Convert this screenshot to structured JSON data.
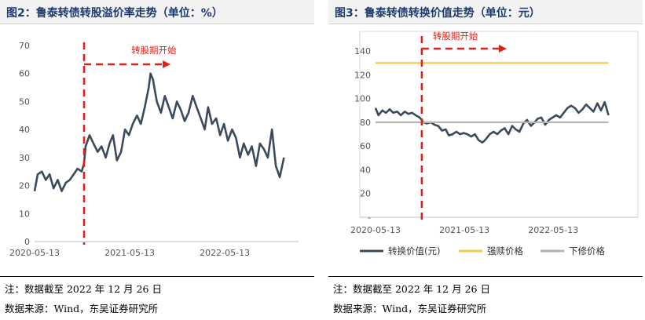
{
  "charts": {
    "left": {
      "title": "图2：鲁泰转债转股溢价率走势（单位：%）",
      "note": "注：数据截至 2022 年 12 月 26 日",
      "source": "数据来源：Wind，东吴证券研究所"
    },
    "right": {
      "title": "图3：鲁泰转债转换价值走势（单位：元）",
      "note": "注：数据截至 2022 年 12 月 26 日",
      "source": "数据来源：Wind，东吴证券研究所"
    }
  },
  "chart_data": [
    {
      "type": "line",
      "title": "图2：鲁泰转债转股溢价率走势（单位：%）",
      "xlabel": "",
      "ylabel": "",
      "x_ticks": [
        "2020-05-13",
        "2021-05-13",
        "2022-05-13"
      ],
      "x_range": [
        "2020-05-13",
        "2023-02-20"
      ],
      "ylim": [
        0,
        70
      ],
      "y_ticks": [
        0,
        10,
        20,
        30,
        40,
        50,
        60,
        70
      ],
      "grid": false,
      "series": [
        {
          "color": "#3b4a5c",
          "x": [
            "2020-05-13",
            "2020-05-25",
            "2020-06-10",
            "2020-06-25",
            "2020-07-10",
            "2020-07-25",
            "2020-08-10",
            "2020-08-25",
            "2020-09-10",
            "2020-09-25",
            "2020-10-10",
            "2020-10-25",
            "2020-11-10",
            "2020-11-19",
            "2020-11-25",
            "2020-12-10",
            "2020-12-25",
            "2021-01-10",
            "2021-01-25",
            "2021-02-10",
            "2021-02-25",
            "2021-03-10",
            "2021-03-25",
            "2021-04-10",
            "2021-04-25",
            "2021-05-10",
            "2021-05-25",
            "2021-06-10",
            "2021-06-25",
            "2021-07-10",
            "2021-07-25",
            "2021-08-01",
            "2021-08-10",
            "2021-08-25",
            "2021-09-10",
            "2021-09-25",
            "2021-10-10",
            "2021-10-25",
            "2021-11-10",
            "2021-11-25",
            "2021-12-10",
            "2021-12-25",
            "2022-01-10",
            "2022-01-25",
            "2022-02-10",
            "2022-02-25",
            "2022-03-10",
            "2022-03-25",
            "2022-04-10",
            "2022-04-25",
            "2022-05-10",
            "2022-05-25",
            "2022-06-10",
            "2022-06-25",
            "2022-07-10",
            "2022-07-25",
            "2022-08-10",
            "2022-08-25",
            "2022-09-10",
            "2022-09-25",
            "2022-10-10",
            "2022-10-25",
            "2022-11-10",
            "2022-11-25",
            "2022-12-10",
            "2022-12-26"
          ],
          "y": [
            18,
            24,
            25,
            22,
            24,
            19,
            22,
            18,
            21,
            22,
            24,
            26,
            25,
            28,
            34,
            38,
            35,
            32,
            34,
            30,
            35,
            38,
            29,
            32,
            40,
            38,
            42,
            45,
            42,
            48,
            55,
            60,
            58,
            50,
            46,
            52,
            48,
            44,
            50,
            47,
            43,
            46,
            52,
            48,
            44,
            40,
            48,
            42,
            44,
            38,
            42,
            36,
            40,
            37,
            30,
            35,
            31,
            34,
            27,
            35,
            33,
            30,
            40,
            27,
            23,
            30
          ]
        }
      ],
      "annotations": [
        {
          "text": "转股期开始",
          "x": "2020-11-19"
        }
      ]
    },
    {
      "type": "line",
      "title": "图3：鲁泰转债转换价值走势（单位：元）",
      "xlabel": "",
      "ylabel": "",
      "x_ticks": [
        "2020-05-13",
        "2021-05-13",
        "2022-05-13"
      ],
      "x_range": [
        "2020-05-13",
        "2023-02-20"
      ],
      "ylim": [
        0,
        150
      ],
      "y_ticks": [
        "-",
        20,
        40,
        60,
        80,
        100,
        120,
        140
      ],
      "grid": false,
      "legend_position": "bottom",
      "series": [
        {
          "name": "转换价值(元)",
          "color": "#3b4a5c",
          "x": [
            "2020-05-13",
            "2020-05-25",
            "2020-06-10",
            "2020-06-25",
            "2020-07-10",
            "2020-07-25",
            "2020-08-10",
            "2020-08-25",
            "2020-09-10",
            "2020-09-25",
            "2020-10-10",
            "2020-10-25",
            "2020-11-10",
            "2020-11-19",
            "2020-11-25",
            "2020-12-10",
            "2020-12-25",
            "2021-01-10",
            "2021-01-25",
            "2021-02-10",
            "2021-02-25",
            "2021-03-10",
            "2021-03-25",
            "2021-04-10",
            "2021-04-25",
            "2021-05-10",
            "2021-05-25",
            "2021-06-10",
            "2021-06-25",
            "2021-07-10",
            "2021-07-25",
            "2021-08-01",
            "2021-08-10",
            "2021-08-25",
            "2021-09-10",
            "2021-09-25",
            "2021-10-10",
            "2021-10-25",
            "2021-11-10",
            "2021-11-25",
            "2021-12-10",
            "2021-12-25",
            "2022-01-10",
            "2022-01-25",
            "2022-02-10",
            "2022-02-25",
            "2022-03-10",
            "2022-03-25",
            "2022-04-10",
            "2022-04-25",
            "2022-05-10",
            "2022-05-25",
            "2022-06-10",
            "2022-06-25",
            "2022-07-10",
            "2022-07-25",
            "2022-08-10",
            "2022-08-25",
            "2022-09-10",
            "2022-09-25",
            "2022-10-10",
            "2022-10-25",
            "2022-11-10",
            "2022-11-25",
            "2022-12-10",
            "2022-12-26"
          ],
          "y": [
            92,
            86,
            90,
            88,
            91,
            88,
            89,
            86,
            89,
            87,
            88,
            86,
            84,
            82,
            80,
            79,
            80,
            78,
            77,
            73,
            74,
            69,
            70,
            72,
            70,
            71,
            70,
            68,
            70,
            65,
            63,
            64,
            66,
            70,
            72,
            70,
            73,
            75,
            70,
            77,
            74,
            72,
            79,
            82,
            77,
            80,
            83,
            84,
            78,
            82,
            84,
            86,
            84,
            88,
            92,
            94,
            92,
            88,
            91,
            95,
            92,
            89,
            96,
            90,
            97,
            86
          ]
        },
        {
          "name": "强赎价格",
          "color": "#f2c94c",
          "x": [
            "2020-05-13",
            "2022-12-26"
          ],
          "y": [
            130,
            130
          ]
        },
        {
          "name": "下修价格",
          "color": "#b3b3b3",
          "x": [
            "2020-05-13",
            "2022-12-26"
          ],
          "y": [
            80,
            80
          ]
        }
      ],
      "annotations": [
        {
          "text": "转股期开始",
          "x": "2020-11-19"
        }
      ]
    }
  ]
}
